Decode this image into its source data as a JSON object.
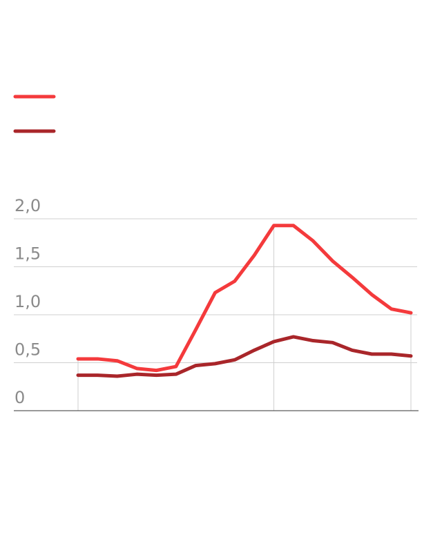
{
  "chart_data": {
    "type": "line",
    "title": "",
    "xlabel": "",
    "ylabel": "",
    "ylim": [
      0,
      2.0
    ],
    "yticks": [
      "0",
      "0,5",
      "1,0",
      "1,5",
      "2,0"
    ],
    "ytick_values": [
      0,
      0.5,
      1.0,
      1.5,
      2.0
    ],
    "grid": true,
    "legend": "top-left",
    "x": [
      0,
      1,
      2,
      3,
      4,
      5,
      6,
      7,
      8,
      9,
      10,
      11,
      12,
      13,
      14,
      15,
      16,
      17
    ],
    "xlim": [
      0,
      17
    ],
    "reference_x": [
      0,
      10,
      17
    ],
    "series": [
      {
        "name": "",
        "color": "#f43a3c",
        "values": [
          0.54,
          0.54,
          0.52,
          0.44,
          0.42,
          0.46,
          0.84,
          1.23,
          1.35,
          1.62,
          1.93,
          1.93,
          1.77,
          1.56,
          1.39,
          1.21,
          1.06,
          1.02
        ]
      },
      {
        "name": "",
        "color": "#a9262a",
        "values": [
          0.37,
          0.37,
          0.36,
          0.38,
          0.37,
          0.38,
          0.47,
          0.49,
          0.53,
          0.63,
          0.72,
          0.77,
          0.73,
          0.71,
          0.63,
          0.59,
          0.59,
          0.57
        ]
      }
    ]
  }
}
